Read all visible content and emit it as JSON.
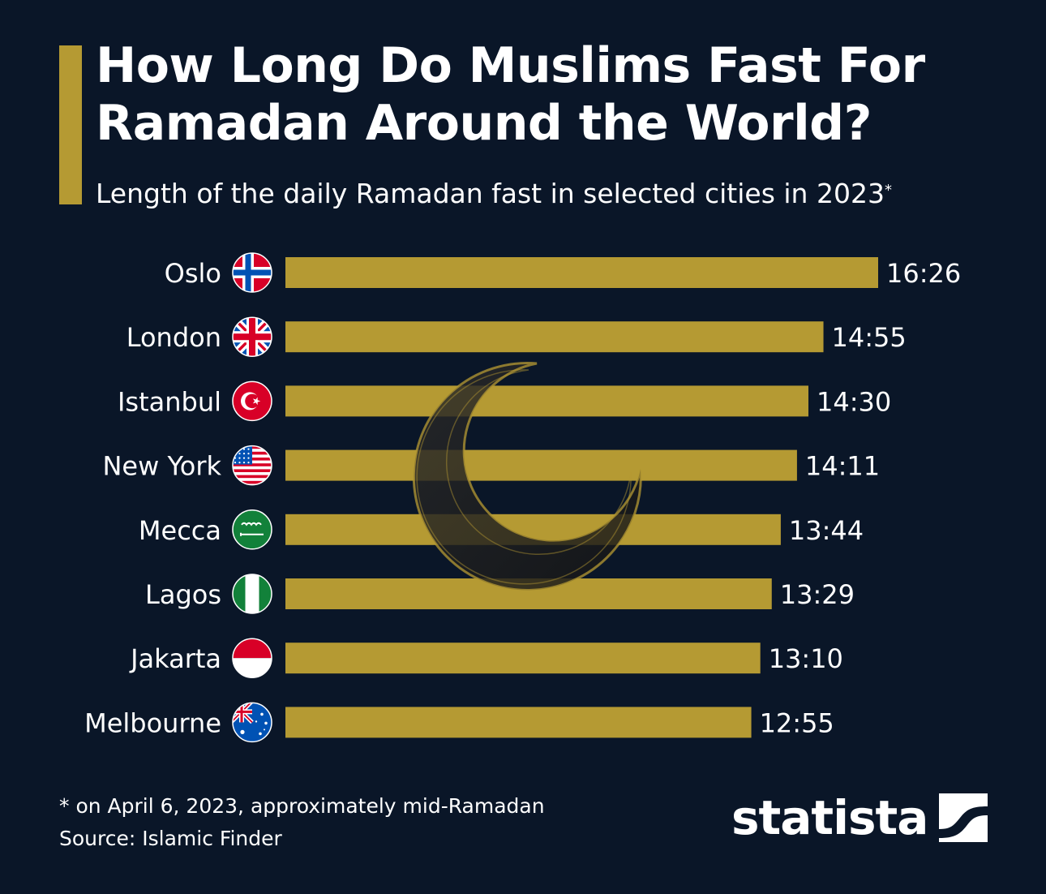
{
  "title": "How Long Do Muslims Fast For\nRamadan Around the World?",
  "subtitle": "Length of the daily Ramadan fast in selected cities in 2023",
  "subtitle_mark": "*",
  "footnote": "* on April 6, 2023, approximately mid-Ramadan",
  "source": "Source: Islamic Finder",
  "brand": "statista",
  "colors": {
    "background": "#0a1628",
    "bar": "#b59a33",
    "text": "#ffffff"
  },
  "chart_data": {
    "type": "bar",
    "orientation": "horizontal",
    "unit": "hours:minutes",
    "categories": [
      "Oslo",
      "London",
      "Istanbul",
      "New York",
      "Mecca",
      "Lagos",
      "Jakarta",
      "Melbourne"
    ],
    "flags": [
      "norway-flag",
      "uk-flag",
      "turkey-flag",
      "usa-flag",
      "saudi-arabia-flag",
      "nigeria-flag",
      "indonesia-flag",
      "australia-flag"
    ],
    "labels": [
      "16:26",
      "14:55",
      "14:30",
      "14:11",
      "13:44",
      "13:29",
      "13:10",
      "12:55"
    ],
    "values_minutes": [
      986,
      895,
      870,
      851,
      824,
      809,
      790,
      775
    ],
    "xlim_minutes": [
      0,
      986
    ],
    "grid": false,
    "legend": "none"
  }
}
